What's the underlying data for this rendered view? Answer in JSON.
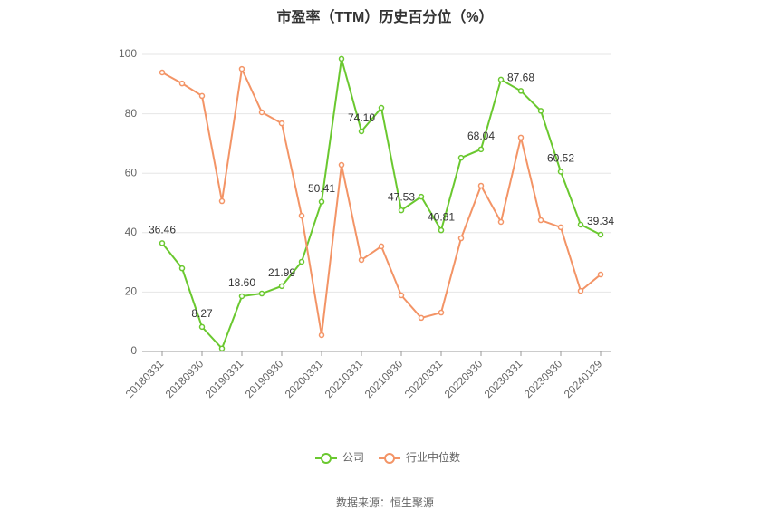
{
  "chart_data": {
    "type": "line",
    "title": "市盈率（TTM）历史百分位（%）",
    "source": "数据来源：恒生聚源",
    "categories": [
      "20180331",
      null,
      "20180930",
      null,
      "20190331",
      null,
      "20190930",
      null,
      "20200331",
      null,
      "20210331",
      null,
      "20210930",
      null,
      "20220331",
      null,
      "20220930",
      null,
      "20230331",
      null,
      "20230930",
      null,
      "20240129"
    ],
    "series": [
      {
        "name": "公司",
        "color": "#6ac82f",
        "values": [
          36.46,
          28,
          8.27,
          1,
          18.6,
          19.5,
          21.99,
          30.2,
          50.41,
          98.5,
          74.1,
          82,
          47.53,
          52.1,
          40.81,
          65.2,
          68.04,
          91.5,
          87.68,
          81,
          60.52,
          42.7,
          39.34
        ],
        "value_labels": [
          "36.46",
          null,
          "8.27",
          null,
          "18.60",
          null,
          "21.99",
          null,
          "50.41",
          null,
          "74.10",
          null,
          "47.53",
          null,
          "40.81",
          null,
          "68.04",
          null,
          "87.68",
          null,
          "60.52",
          null,
          "39.34"
        ]
      },
      {
        "name": "行业中位数",
        "color": "#f39466",
        "values": [
          93.9,
          90.2,
          86,
          50.6,
          95.1,
          80.5,
          76.8,
          45.7,
          5.5,
          62.8,
          30.8,
          35.4,
          18.9,
          11.3,
          13.1,
          38.1,
          55.8,
          43.6,
          72,
          44.2,
          41.8,
          20.4,
          25.9
        ]
      }
    ],
    "ylim": [
      0,
      100
    ],
    "yticks": [
      0,
      20,
      40,
      60,
      80,
      100
    ],
    "grid": true,
    "legend": "bottom"
  }
}
